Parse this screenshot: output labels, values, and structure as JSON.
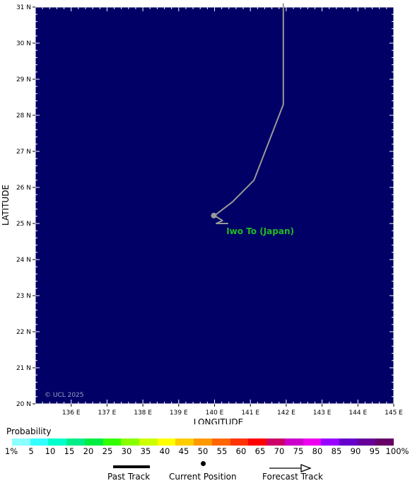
{
  "map": {
    "background": "#000066",
    "grid_color": "#ffffff",
    "lon_range": [
      135,
      145
    ],
    "lat_range": [
      20,
      31
    ],
    "x_axis_label": "LONGITUDE",
    "y_axis_label": "LATITUDE",
    "lon_ticks": [
      "136 E",
      "137 E",
      "138 E",
      "139 E",
      "140 E",
      "141 E",
      "142 E",
      "143 E",
      "144 E",
      "145 E"
    ],
    "lat_ticks": [
      "20 N",
      "21 N",
      "22 N",
      "23 N",
      "24 N",
      "25 N",
      "26 N",
      "27 N",
      "28 N",
      "29 N",
      "30 N",
      "31 N"
    ],
    "copyright": "© UCL 2025"
  },
  "places": [
    {
      "name": "Iwo To (Japan)",
      "lon": 140.33,
      "lat": 24.78,
      "color": "#22bb22"
    }
  ],
  "track": {
    "color": "#999999",
    "past_track_points": [
      [
        141.92,
        31.1
      ],
      [
        141.92,
        28.3
      ],
      [
        141.1,
        26.2
      ],
      [
        140.5,
        25.6
      ],
      [
        140.0,
        25.22
      ],
      [
        140.22,
        25.08
      ],
      [
        140.05,
        25.0
      ],
      [
        140.38,
        25.0
      ]
    ],
    "current_position": [
      139.98,
      25.22
    ]
  },
  "legend": {
    "title": "Probability",
    "labels": [
      "1%",
      "5",
      "10",
      "15",
      "20",
      "25",
      "30",
      "35",
      "40",
      "45",
      "50",
      "55",
      "60",
      "65",
      "70",
      "75",
      "80",
      "85",
      "90",
      "95",
      "100%"
    ],
    "colors": [
      "#8cffff",
      "#33ffff",
      "#00ffcc",
      "#00ee88",
      "#00ee44",
      "#33ff00",
      "#88ff00",
      "#ccff00",
      "#ffff00",
      "#ffcc00",
      "#ff9900",
      "#ff6600",
      "#ff3300",
      "#ff0000",
      "#cc0066",
      "#cc00cc",
      "#ee00ee",
      "#9900ff",
      "#6600cc",
      "#660099",
      "#660066"
    ],
    "key": {
      "past_track": "Past Track",
      "current_position": "Current Position",
      "forecast_track": "Forecast Track"
    }
  }
}
